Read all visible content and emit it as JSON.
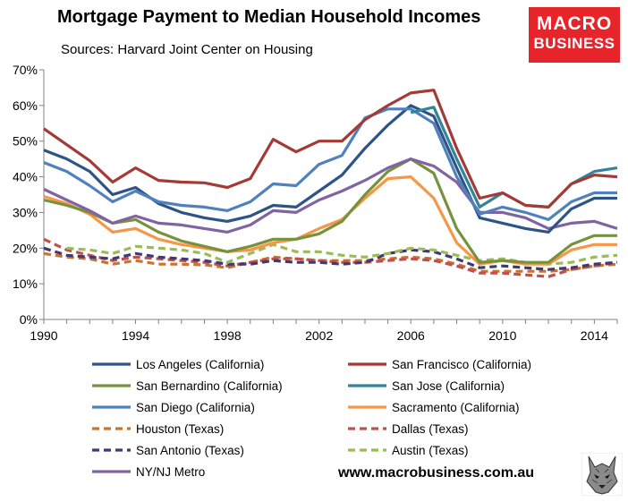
{
  "header": {
    "title": "Mortgage Payment to Median Household Incomes",
    "subtitle": "Sources: Harvard Joint Center on Housing"
  },
  "logo": {
    "line1": "MACRO",
    "line2": "BUSINESS",
    "color": "#e8242b"
  },
  "footer": {
    "website": "www.macrobusiness.com.au"
  },
  "chart_data": {
    "type": "line",
    "title": "Mortgage Payment to Median Household Incomes",
    "subtitle": "Sources: Harvard Joint Center on Housing",
    "xlabel": "",
    "ylabel": "",
    "xlim": [
      1990,
      2015
    ],
    "ylim": [
      0,
      70
    ],
    "x_ticks": [
      1990,
      1994,
      1998,
      2002,
      2006,
      2010,
      2014
    ],
    "y_ticks": [
      0,
      10,
      20,
      30,
      40,
      50,
      60,
      70
    ],
    "y_tick_suffix": "%",
    "grid": false,
    "legend_position": "bottom",
    "x": [
      1990,
      1991,
      1992,
      1993,
      1994,
      1995,
      1996,
      1997,
      1998,
      1999,
      2000,
      2001,
      2002,
      2003,
      2004,
      2005,
      2006,
      2007,
      2008,
      2009,
      2010,
      2011,
      2012,
      2013,
      2014,
      2015
    ],
    "series": [
      {
        "name": "Los Angeles (California)",
        "color": "#2e5486",
        "dash": "solid",
        "values": [
          47.5,
          45.0,
          41.5,
          35.0,
          37.0,
          32.5,
          30.0,
          28.5,
          27.5,
          29.0,
          32.0,
          31.5,
          36.0,
          40.5,
          48.0,
          54.5,
          60.0,
          57.0,
          42.5,
          28.5,
          27.0,
          25.5,
          24.5,
          31.0,
          34.0,
          34.0
        ]
      },
      {
        "name": "San Francisco (California)",
        "color": "#a43a36",
        "dash": "solid",
        "values": [
          53.5,
          49.0,
          44.5,
          38.5,
          42.5,
          39.0,
          38.5,
          38.3,
          37.0,
          39.5,
          50.5,
          47.0,
          50.0,
          50.0,
          56.0,
          60.0,
          63.5,
          64.3,
          48.0,
          34.0,
          35.5,
          32.0,
          31.5,
          38.0,
          40.5,
          40.0
        ]
      },
      {
        "name": "San Bernardino (California)",
        "color": "#76923c",
        "dash": "solid",
        "values": [
          33.5,
          32.0,
          30.0,
          27.0,
          28.0,
          24.5,
          22.0,
          20.5,
          19.0,
          20.5,
          22.5,
          22.5,
          24.0,
          27.5,
          35.0,
          41.5,
          45.0,
          41.0,
          25.5,
          16.0,
          16.5,
          16.0,
          16.0,
          21.0,
          23.5,
          23.5
        ]
      },
      {
        "name": "San Jose (California)",
        "color": "#31849b",
        "dash": "solid",
        "values": [
          null,
          null,
          null,
          null,
          null,
          null,
          null,
          null,
          null,
          null,
          null,
          null,
          null,
          null,
          null,
          null,
          58.0,
          59.5,
          45.0,
          31.5,
          35.5,
          32.0,
          31.5,
          38.0,
          41.5,
          42.5
        ]
      },
      {
        "name": "San Diego (California)",
        "color": "#4f81bd",
        "dash": "solid",
        "values": [
          44.0,
          41.5,
          37.5,
          33.0,
          36.0,
          33.0,
          32.0,
          31.5,
          30.5,
          33.0,
          38.0,
          37.5,
          43.5,
          46.0,
          56.5,
          59.0,
          59.0,
          55.0,
          40.0,
          29.5,
          31.5,
          30.0,
          28.0,
          33.0,
          35.5,
          35.5
        ]
      },
      {
        "name": "Sacramento (California)",
        "color": "#f79646",
        "dash": "solid",
        "values": [
          34.5,
          32.5,
          29.5,
          24.5,
          25.5,
          22.5,
          21.0,
          20.0,
          19.0,
          19.5,
          21.5,
          22.5,
          25.5,
          28.0,
          34.0,
          39.5,
          40.0,
          34.0,
          21.5,
          15.5,
          16.5,
          15.5,
          15.5,
          19.5,
          21.0,
          21.0
        ]
      },
      {
        "name": "Houston (Texas)",
        "color": "#c8742e",
        "dash": "dash",
        "values": [
          18.5,
          17.5,
          17.0,
          15.5,
          16.5,
          15.5,
          15.5,
          15.3,
          14.5,
          16.0,
          17.5,
          17.0,
          16.5,
          16.5,
          16.5,
          17.0,
          17.5,
          17.0,
          15.5,
          13.5,
          13.5,
          13.5,
          13.5,
          14.0,
          15.0,
          15.5
        ]
      },
      {
        "name": "Dallas (Texas)",
        "color": "#c0504d",
        "dash": "dash",
        "values": [
          22.5,
          19.5,
          18.0,
          16.5,
          17.5,
          17.0,
          16.5,
          16.0,
          15.0,
          16.0,
          17.0,
          17.0,
          16.5,
          16.0,
          16.0,
          16.5,
          17.0,
          16.5,
          15.0,
          13.0,
          13.0,
          12.5,
          12.0,
          14.0,
          15.0,
          16.0
        ]
      },
      {
        "name": "San Antonio (Texas)",
        "color": "#403a6e",
        "dash": "dash",
        "values": [
          20.0,
          18.0,
          17.5,
          17.0,
          18.5,
          17.5,
          17.0,
          16.5,
          15.5,
          15.5,
          16.5,
          16.0,
          16.0,
          15.5,
          16.0,
          18.5,
          19.5,
          19.0,
          17.0,
          14.5,
          15.0,
          14.5,
          14.0,
          14.5,
          15.5,
          16.0
        ]
      },
      {
        "name": "Austin (Texas)",
        "color": "#9bbb59",
        "dash": "dash",
        "values": [
          null,
          20.0,
          19.5,
          18.5,
          20.5,
          20.0,
          19.5,
          18.5,
          16.0,
          18.5,
          21.0,
          19.0,
          19.0,
          18.0,
          17.5,
          18.5,
          20.0,
          19.5,
          18.0,
          16.5,
          17.0,
          16.0,
          15.5,
          16.0,
          17.5,
          18.0
        ]
      },
      {
        "name": "NY/NJ Metro",
        "color": "#8064a2",
        "dash": "solid",
        "values": [
          36.5,
          33.5,
          30.5,
          27.0,
          29.0,
          27.0,
          26.5,
          25.5,
          24.5,
          26.5,
          30.5,
          30.0,
          33.5,
          36.0,
          39.0,
          42.5,
          45.0,
          43.0,
          38.5,
          30.0,
          30.0,
          28.5,
          25.5,
          27.0,
          27.5,
          25.5
        ]
      }
    ]
  }
}
